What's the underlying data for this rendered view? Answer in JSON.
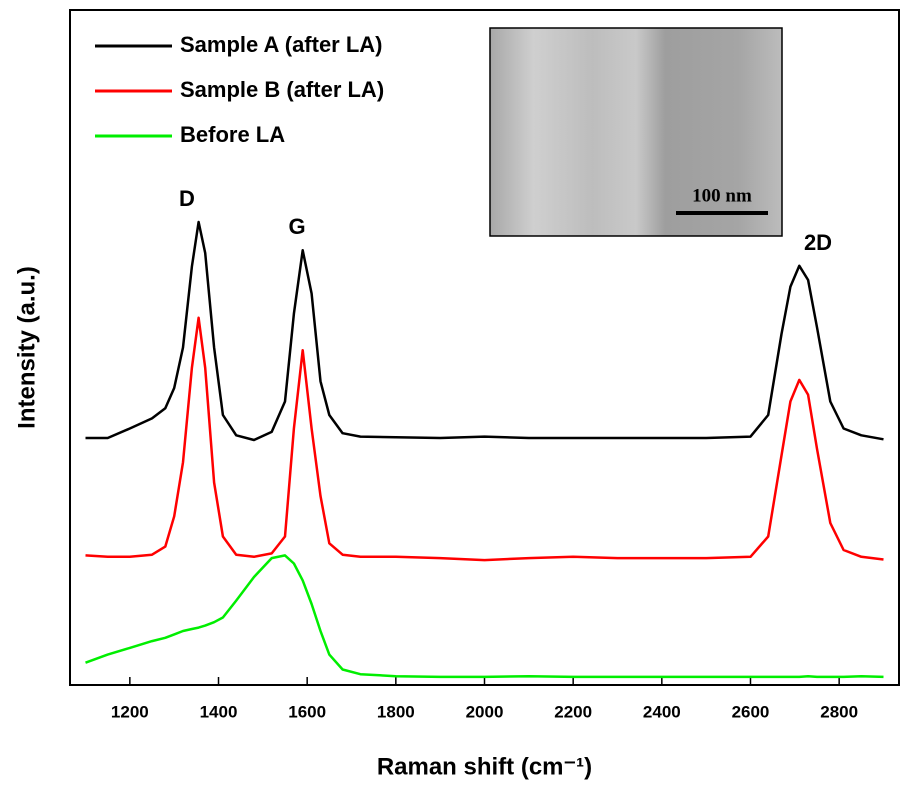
{
  "chart_data": {
    "type": "line",
    "x_label": "Raman shift (cm⁻¹)",
    "y_label": "Intensity (a.u.)",
    "xlim": [
      1065,
      2935
    ],
    "ylim": [
      0,
      100
    ],
    "xticks": [
      1200,
      1400,
      1600,
      1800,
      2000,
      2200,
      2400,
      2600,
      2800
    ],
    "legend": "upper left",
    "annotations": [
      "D",
      "G",
      "2D"
    ],
    "inset_scale_label": "100 nm",
    "x": [
      1100,
      1150,
      1200,
      1250,
      1280,
      1300,
      1320,
      1340,
      1355,
      1370,
      1390,
      1410,
      1440,
      1480,
      1520,
      1550,
      1570,
      1590,
      1610,
      1630,
      1650,
      1680,
      1720,
      1800,
      1900,
      2000,
      2100,
      2200,
      2300,
      2400,
      2500,
      2600,
      2640,
      2670,
      2690,
      2710,
      2730,
      2750,
      2780,
      2810,
      2850,
      2900
    ],
    "series": [
      {
        "name": "Sample A (after LA)",
        "color": "#000000",
        "values": [
          36.6,
          36.6,
          38,
          39.5,
          41,
          44,
          50,
          62,
          68.6,
          64,
          50,
          40,
          37,
          36.3,
          37.5,
          42,
          55,
          64.4,
          58,
          45,
          40,
          37.3,
          36.8,
          36.7,
          36.6,
          36.8,
          36.6,
          36.6,
          36.6,
          36.6,
          36.6,
          36.8,
          40,
          52,
          59,
          62.1,
          60,
          53,
          42,
          38,
          37,
          36.4
        ]
      },
      {
        "name": "Sample B (after LA)",
        "color": "#ff0000",
        "values": [
          19.2,
          19,
          19,
          19.3,
          20.5,
          25,
          33,
          47,
          54.4,
          47,
          30,
          22,
          19.3,
          19,
          19.5,
          22,
          38,
          49.6,
          38,
          28,
          21,
          19.3,
          19,
          19,
          18.8,
          18.5,
          18.8,
          19,
          18.8,
          18.8,
          18.8,
          19,
          22,
          34,
          42,
          45.2,
          43,
          35,
          24,
          20,
          19,
          18.6
        ]
      },
      {
        "name": "Before LA",
        "color": "#00ee00",
        "values": [
          3.3,
          4.5,
          5.5,
          6.5,
          7,
          7.5,
          8,
          8.3,
          8.5,
          8.8,
          9.3,
          10,
          12.5,
          16,
          18.8,
          19.2,
          18,
          15.5,
          12,
          8,
          4.5,
          2.3,
          1.6,
          1.3,
          1.2,
          1.2,
          1.3,
          1.2,
          1.2,
          1.2,
          1.2,
          1.2,
          1.2,
          1.2,
          1.2,
          1.2,
          1.3,
          1.2,
          1.2,
          1.2,
          1.3,
          1.2
        ]
      }
    ]
  }
}
